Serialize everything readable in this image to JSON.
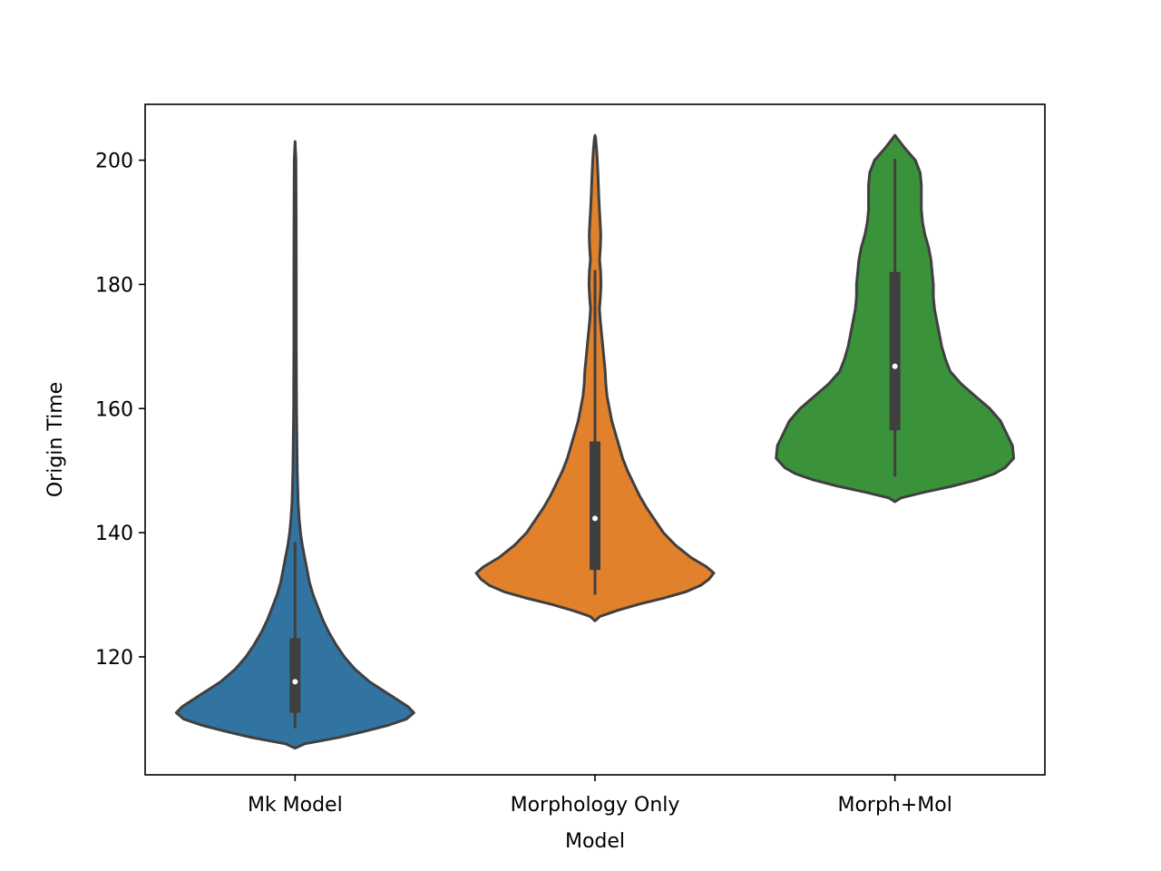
{
  "chart_data": {
    "type": "violin",
    "title": "",
    "xlabel": "Model",
    "ylabel": "Origin Time",
    "categories": [
      "Mk Model",
      "Morphology Only",
      "Morph+Mol"
    ],
    "ylim": [
      101,
      209
    ],
    "yticks": [
      120,
      140,
      160,
      180,
      200
    ],
    "ytick_labels": [
      "120",
      "140",
      "160",
      "180",
      "200"
    ],
    "grid": false,
    "legend": "none",
    "series": [
      {
        "category": "Mk Model",
        "color": "#3274a1",
        "min": 108.5,
        "q1": 111,
        "median": 116,
        "q3": 123,
        "max": 138.5,
        "density": [
          [
            105.3,
            0.0
          ],
          [
            106.0,
            0.08
          ],
          [
            107.0,
            0.36
          ],
          [
            108.0,
            0.58
          ],
          [
            109.0,
            0.78
          ],
          [
            110.0,
            0.93
          ],
          [
            111.0,
            0.99
          ],
          [
            112.0,
            0.94
          ],
          [
            114.0,
            0.78
          ],
          [
            116.0,
            0.62
          ],
          [
            118.0,
            0.5
          ],
          [
            120.0,
            0.41
          ],
          [
            122.0,
            0.34
          ],
          [
            124.0,
            0.28
          ],
          [
            126.0,
            0.23
          ],
          [
            128.0,
            0.19
          ],
          [
            130.0,
            0.15
          ],
          [
            132.0,
            0.12
          ],
          [
            134.0,
            0.1
          ],
          [
            136.0,
            0.08
          ],
          [
            138.0,
            0.06
          ],
          [
            140.0,
            0.045
          ],
          [
            142.0,
            0.035
          ],
          [
            145.0,
            0.025
          ],
          [
            150.0,
            0.018
          ],
          [
            160.0,
            0.012
          ],
          [
            170.0,
            0.01
          ],
          [
            180.0,
            0.01
          ],
          [
            190.0,
            0.009
          ],
          [
            200.0,
            0.007
          ],
          [
            203.0,
            0.0
          ]
        ]
      },
      {
        "category": "Morphology Only",
        "color": "#e1812c",
        "min": 130,
        "q1": 134,
        "median": 142.3,
        "q3": 154.7,
        "max": 182.3,
        "density": [
          [
            125.8,
            0.0
          ],
          [
            126.5,
            0.04
          ],
          [
            127.5,
            0.19
          ],
          [
            128.5,
            0.37
          ],
          [
            129.5,
            0.58
          ],
          [
            130.5,
            0.76
          ],
          [
            131.5,
            0.88
          ],
          [
            132.5,
            0.95
          ],
          [
            133.5,
            0.99
          ],
          [
            134.5,
            0.93
          ],
          [
            136.0,
            0.8
          ],
          [
            138.0,
            0.67
          ],
          [
            140.0,
            0.57
          ],
          [
            142.0,
            0.5
          ],
          [
            144.0,
            0.43
          ],
          [
            146.0,
            0.37
          ],
          [
            148.0,
            0.32
          ],
          [
            150.0,
            0.27
          ],
          [
            152.0,
            0.23
          ],
          [
            154.0,
            0.2
          ],
          [
            156.0,
            0.17
          ],
          [
            158.0,
            0.14
          ],
          [
            160.0,
            0.12
          ],
          [
            162.0,
            0.1
          ],
          [
            164.0,
            0.09
          ],
          [
            166.0,
            0.085
          ],
          [
            168.0,
            0.075
          ],
          [
            170.0,
            0.065
          ],
          [
            172.0,
            0.055
          ],
          [
            174.0,
            0.045
          ],
          [
            176.0,
            0.037
          ],
          [
            178.0,
            0.045
          ],
          [
            180.0,
            0.05
          ],
          [
            182.0,
            0.047
          ],
          [
            184.0,
            0.038
          ],
          [
            186.0,
            0.045
          ],
          [
            188.0,
            0.048
          ],
          [
            190.0,
            0.043
          ],
          [
            192.0,
            0.037
          ],
          [
            194.0,
            0.032
          ],
          [
            196.0,
            0.028
          ],
          [
            198.0,
            0.024
          ],
          [
            200.0,
            0.019
          ],
          [
            202.0,
            0.012
          ],
          [
            203.5,
            0.005
          ],
          [
            204.0,
            0.0
          ]
        ]
      },
      {
        "category": "Morph+Mol",
        "color": "#3a923a",
        "min": 149,
        "q1": 156.5,
        "median": 166.8,
        "q3": 182,
        "max": 200.2,
        "density": [
          [
            145.0,
            0.0
          ],
          [
            145.6,
            0.05
          ],
          [
            146.5,
            0.24
          ],
          [
            147.5,
            0.48
          ],
          [
            148.5,
            0.68
          ],
          [
            149.5,
            0.83
          ],
          [
            150.5,
            0.92
          ],
          [
            152.0,
            0.99
          ],
          [
            154.0,
            0.98
          ],
          [
            156.0,
            0.93
          ],
          [
            158.0,
            0.88
          ],
          [
            160.0,
            0.79
          ],
          [
            162.0,
            0.67
          ],
          [
            164.0,
            0.55
          ],
          [
            166.0,
            0.46
          ],
          [
            168.0,
            0.42
          ],
          [
            170.0,
            0.39
          ],
          [
            172.0,
            0.37
          ],
          [
            174.0,
            0.35
          ],
          [
            176.0,
            0.33
          ],
          [
            178.0,
            0.32
          ],
          [
            180.0,
            0.32
          ],
          [
            182.0,
            0.31
          ],
          [
            184.0,
            0.3
          ],
          [
            186.0,
            0.28
          ],
          [
            188.0,
            0.25
          ],
          [
            190.0,
            0.23
          ],
          [
            192.0,
            0.22
          ],
          [
            194.0,
            0.22
          ],
          [
            196.0,
            0.22
          ],
          [
            198.0,
            0.21
          ],
          [
            200.0,
            0.17
          ],
          [
            202.0,
            0.08
          ],
          [
            203.5,
            0.02
          ],
          [
            204.0,
            0.0
          ]
        ]
      }
    ]
  }
}
